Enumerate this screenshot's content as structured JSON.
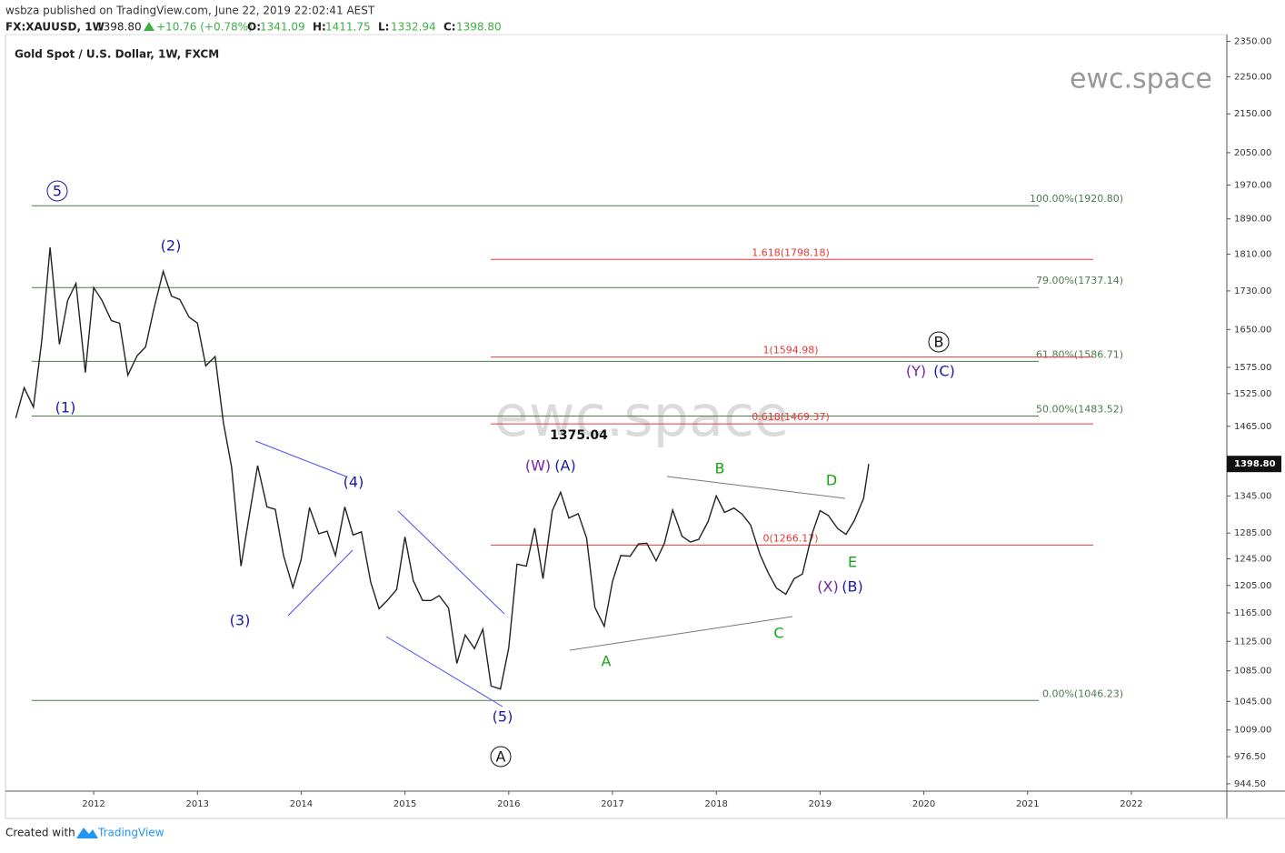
{
  "header": {
    "publisher": "wsbza published on TradingView.com, June 22, 2019 22:02:41 AEST",
    "symbol": "FX:XAUUSD, 1W",
    "price": "1398.80",
    "change": "+10.76 (+0.78%)",
    "ohlc": [
      {
        "label": "O:",
        "value": "1341.09"
      },
      {
        "label": "H:",
        "value": "1411.75"
      },
      {
        "label": "L:",
        "value": "1332.94"
      },
      {
        "label": "C:",
        "value": "1398.80"
      }
    ]
  },
  "footer": {
    "created": "Created with",
    "brand": "TradingView"
  },
  "chart_data": {
    "type": "line",
    "title": "Gold Spot / U.S. Dollar, 1W, FXCM",
    "watermark": "ewc.space",
    "log_scale": true,
    "color": "#222222",
    "xlim": [
      2011.15,
      2022.92
    ],
    "xticks": [
      2012,
      2013,
      2014,
      2015,
      2016,
      2017,
      2018,
      2019,
      2020,
      2021,
      2022
    ],
    "ylim": [
      936,
      2370
    ],
    "yticks": [
      {
        "value": 2350,
        "label": "2350.00"
      },
      {
        "value": 2250,
        "label": "2250.00"
      },
      {
        "value": 2150,
        "label": "2150.00"
      },
      {
        "value": 2050,
        "label": "2050.00"
      },
      {
        "value": 1970,
        "label": "1970.00"
      },
      {
        "value": 1890,
        "label": "1890.00"
      },
      {
        "value": 1810,
        "label": "1810.00"
      },
      {
        "value": 1730,
        "label": "1730.00"
      },
      {
        "value": 1650,
        "label": "1650.00"
      },
      {
        "value": 1575,
        "label": "1575.00"
      },
      {
        "value": 1525,
        "label": "1525.00"
      },
      {
        "value": 1465,
        "label": "1465.00"
      },
      {
        "value": 1345,
        "label": "1345.00"
      },
      {
        "value": 1285,
        "label": "1285.00"
      },
      {
        "value": 1245,
        "label": "1245.00"
      },
      {
        "value": 1205,
        "label": "1205.00"
      },
      {
        "value": 1165,
        "label": "1165.00"
      },
      {
        "value": 1125,
        "label": "1125.00"
      },
      {
        "value": 1085,
        "label": "1085.00"
      },
      {
        "value": 1045,
        "label": "1045.00"
      },
      {
        "value": 1009,
        "label": "1009.00"
      },
      {
        "value": 976.5,
        "label": "976.50"
      },
      {
        "value": 944.5,
        "label": "944.50"
      }
    ],
    "last_price": {
      "value": 1398.8,
      "label": "1398.80"
    },
    "x": [
      2011.25,
      2011.33,
      2011.42,
      2011.5,
      2011.58,
      2011.67,
      2011.75,
      2011.83,
      2011.92,
      2012.0,
      2012.08,
      2012.17,
      2012.25,
      2012.33,
      2012.42,
      2012.5,
      2012.58,
      2012.67,
      2012.75,
      2012.83,
      2012.92,
      2013.0,
      2013.08,
      2013.17,
      2013.25,
      2013.33,
      2013.42,
      2013.5,
      2013.58,
      2013.67,
      2013.75,
      2013.83,
      2013.92,
      2014.0,
      2014.08,
      2014.17,
      2014.25,
      2014.33,
      2014.42,
      2014.5,
      2014.58,
      2014.67,
      2014.75,
      2014.83,
      2014.92,
      2015.0,
      2015.08,
      2015.17,
      2015.25,
      2015.33,
      2015.42,
      2015.5,
      2015.58,
      2015.67,
      2015.75,
      2015.83,
      2015.92,
      2016.0,
      2016.08,
      2016.17,
      2016.25,
      2016.33,
      2016.42,
      2016.5,
      2016.58,
      2016.67,
      2016.75,
      2016.83,
      2016.92,
      2017.0,
      2017.08,
      2017.17,
      2017.25,
      2017.33,
      2017.42,
      2017.5,
      2017.58,
      2017.67,
      2017.75,
      2017.83,
      2017.92,
      2018.0,
      2018.08,
      2018.17,
      2018.25,
      2018.33,
      2018.42,
      2018.5,
      2018.58,
      2018.67,
      2018.75,
      2018.83,
      2018.92,
      2019.0,
      2019.08,
      2019.17,
      2019.25,
      2019.33,
      2019.42,
      2019.47
    ],
    "values": [
      1480,
      1536,
      1500,
      1628,
      1825,
      1620,
      1710,
      1746,
      1565,
      1737,
      1710,
      1668,
      1663,
      1560,
      1598,
      1615,
      1692,
      1772,
      1719,
      1712,
      1675,
      1663,
      1578,
      1596,
      1472,
      1393,
      1234,
      1313,
      1396,
      1327,
      1323,
      1250,
      1202,
      1244,
      1326,
      1284,
      1288,
      1250,
      1327,
      1282,
      1287,
      1210,
      1171,
      1183,
      1199,
      1279,
      1212,
      1183,
      1183,
      1190,
      1172,
      1095,
      1134,
      1115,
      1142,
      1065,
      1061,
      1116,
      1237,
      1234,
      1293,
      1215,
      1321,
      1351,
      1309,
      1316,
      1277,
      1173,
      1146,
      1211,
      1250,
      1249,
      1268,
      1269,
      1242,
      1269,
      1322,
      1280,
      1271,
      1275,
      1303,
      1345,
      1318,
      1325,
      1315,
      1298,
      1252,
      1224,
      1201,
      1192,
      1215,
      1222,
      1282,
      1321,
      1313,
      1292,
      1283,
      1305,
      1341,
      1398.8
    ],
    "fib_levels": [
      {
        "value": 1920.8,
        "label": "100.00%(1920.80)"
      },
      {
        "value": 1737.14,
        "label": "79.00%(1737.14)"
      },
      {
        "value": 1586.71,
        "label": "61.80%(1586.71)"
      },
      {
        "value": 1483.52,
        "label": "50.00%(1483.52)"
      },
      {
        "value": 1046.23,
        "label": "0.00%(1046.23)"
      }
    ],
    "fib_extensions": [
      {
        "value": 1798.18,
        "label": "1.618(1798.18)"
      },
      {
        "value": 1594.98,
        "label": "1(1594.98)"
      },
      {
        "value": 1469.37,
        "label": "0.618(1469.37)"
      },
      {
        "value": 1266.17,
        "label": "0(1266.17)"
      }
    ],
    "annotations": [
      "5",
      "(2)",
      "(1)",
      "(3)",
      "(4)",
      "(5)",
      "A",
      "(W)",
      "(A)",
      "1375.04",
      "A",
      "B",
      "C",
      "D",
      "E",
      "(X)",
      "(B)",
      "B",
      "(Y)",
      "(C)"
    ]
  }
}
